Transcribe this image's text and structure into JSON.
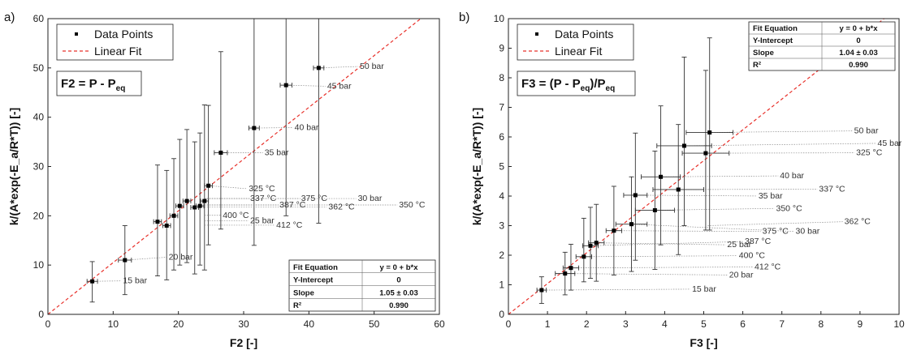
{
  "chart_data": [
    {
      "panel_label": "a)",
      "type": "scatter",
      "xlabel": "F2 [-]",
      "ylabel": "k/(A*exp(-E_a/R*T)) [-]",
      "xlim": [
        0,
        60
      ],
      "ylim": [
        0,
        60
      ],
      "xticks": [
        "0",
        "10",
        "20",
        "30",
        "40",
        "50",
        "60"
      ],
      "yticks": [
        "0",
        "10",
        "20",
        "30",
        "40",
        "50",
        "60"
      ],
      "equation_box": {
        "main": "F2 = P - P",
        "sub": "eq"
      },
      "legend": {
        "points": "Data Points",
        "fit": "Linear Fit"
      },
      "fit_table": {
        "rows": [
          [
            "Fit Equation",
            "y = 0 + b*x"
          ],
          [
            "Y-Intercept",
            "0"
          ],
          [
            "Slope",
            "1.05 ± 0.03"
          ],
          [
            "R²",
            "0.990"
          ]
        ]
      },
      "fit_line": {
        "intercept": 0,
        "slope": 1.05
      },
      "points": [
        {
          "x": 6.8,
          "y": 6.7,
          "xerr": 0.8,
          "yerr_lo": 4.2,
          "yerr_hi": 4.0,
          "label": "15 bar",
          "lx": 11.5,
          "ly": 6.3
        },
        {
          "x": 11.8,
          "y": 11.0,
          "xerr": 1.0,
          "yerr_lo": 7.0,
          "yerr_hi": 7.0,
          "label": "20 bar",
          "lx": 18.5,
          "ly": 11.1
        },
        {
          "x": 16.8,
          "y": 18.8,
          "xerr": 0.6,
          "yerr_lo": 11.0,
          "yerr_hi": 11.5,
          "label": "",
          "lx": 0,
          "ly": 0
        },
        {
          "x": 18.2,
          "y": 18.0,
          "xerr": 0.6,
          "yerr_lo": 11.0,
          "yerr_hi": 11.2,
          "label": "",
          "lx": 0,
          "ly": 0
        },
        {
          "x": 19.3,
          "y": 20.0,
          "xerr": 0.6,
          "yerr_lo": 11.0,
          "yerr_hi": 11.6,
          "label": "",
          "lx": 0,
          "ly": 0
        },
        {
          "x": 20.2,
          "y": 22.0,
          "xerr": 0.6,
          "yerr_lo": 12.0,
          "yerr_hi": 13.5,
          "label": "",
          "lx": 0,
          "ly": 0
        },
        {
          "x": 21.3,
          "y": 23.0,
          "xerr": 0.6,
          "yerr_lo": 12.5,
          "yerr_hi": 14.5,
          "label": "",
          "lx": 0,
          "ly": 0
        },
        {
          "x": 22.5,
          "y": 21.7,
          "xerr": 0.6,
          "yerr_lo": 13.5,
          "yerr_hi": 13.3,
          "label": "",
          "lx": 0,
          "ly": 0
        },
        {
          "x": 23.3,
          "y": 22.0,
          "xerr": 0.6,
          "yerr_lo": 12.0,
          "yerr_hi": 14.8,
          "label": "",
          "lx": 0,
          "ly": 0
        },
        {
          "x": 24.0,
          "y": 23.0,
          "xerr": 0.6,
          "yerr_lo": 14.0,
          "yerr_hi": 19.5,
          "label": "",
          "lx": 0,
          "ly": 0
        },
        {
          "x": 24.6,
          "y": 26.1,
          "xerr": 0.6,
          "yerr_lo": 12.0,
          "yerr_hi": 16.3,
          "label": "325 °C",
          "lx": 30.8,
          "ly": 25.0
        },
        {
          "x": 26.5,
          "y": 32.8,
          "xerr": 1.0,
          "yerr_lo": 15.5,
          "yerr_hi": 20.5,
          "label": "35 bar",
          "lx": 33.2,
          "ly": 32.3
        },
        {
          "x": 31.6,
          "y": 37.8,
          "xerr": 0.8,
          "yerr_lo": 23.8,
          "yerr_hi": 22.2,
          "label": "40 bar",
          "lx": 37.8,
          "ly": 37.4
        },
        {
          "x": 36.5,
          "y": 46.5,
          "xerr": 0.9,
          "yerr_lo": 26.5,
          "yerr_hi": 13.5,
          "label": "45 bar",
          "lx": 42.8,
          "ly": 45.8
        },
        {
          "x": 41.5,
          "y": 50.0,
          "xerr": 0.8,
          "yerr_lo": 31.5,
          "yerr_hi": 10.0,
          "label": "50 bar",
          "lx": 47.8,
          "ly": 49.8
        }
      ],
      "annotations": [
        {
          "text": "337 °C",
          "x": 31.0,
          "y": 23.0
        },
        {
          "text": "375 °C",
          "x": 38.8,
          "y": 23.0
        },
        {
          "text": "30 bar",
          "x": 47.5,
          "y": 23.0
        },
        {
          "text": "387 °C",
          "x": 35.5,
          "y": 21.7
        },
        {
          "text": "362 °C",
          "x": 43.0,
          "y": 21.3
        },
        {
          "text": "350 °C",
          "x": 53.8,
          "y": 21.7
        },
        {
          "text": "400 °C",
          "x": 26.8,
          "y": 19.6
        },
        {
          "text": "25 bar",
          "x": 31.0,
          "y": 18.5
        },
        {
          "text": "412 °C",
          "x": 35.0,
          "y": 17.6
        }
      ]
    },
    {
      "panel_label": "b)",
      "type": "scatter",
      "xlabel": "F3 [-]",
      "ylabel": "k/(A*exp(-E_a/R*T)) [-]",
      "xlim": [
        0,
        10
      ],
      "ylim": [
        0,
        10
      ],
      "xticks": [
        "0",
        "1",
        "2",
        "3",
        "4",
        "5",
        "6",
        "7",
        "8",
        "9",
        "10"
      ],
      "yticks": [
        "0",
        "1",
        "2",
        "3",
        "4",
        "5",
        "6",
        "7",
        "8",
        "9",
        "10"
      ],
      "equation_box": {
        "main": "F3 = (P - P",
        "sub": "eq",
        "tail": ")/P",
        "sub2": "eq"
      },
      "legend": {
        "points": "Data Points",
        "fit": "Linear Fit"
      },
      "fit_table": {
        "rows": [
          [
            "Fit Equation",
            "y = 0 + b*x"
          ],
          [
            "Y-Intercept",
            "0"
          ],
          [
            "Slope",
            "1.04 ± 0.03"
          ],
          [
            "R²",
            "0.990"
          ]
        ]
      },
      "fit_line": {
        "intercept": 0,
        "slope": 1.04
      },
      "points": [
        {
          "x": 0.85,
          "y": 0.82,
          "xerr": 0.12,
          "yerr_lo": 0.45,
          "yerr_hi": 0.45,
          "label": "15 bar",
          "lx": 4.7,
          "ly": 0.77
        },
        {
          "x": 1.45,
          "y": 1.38,
          "xerr": 0.25,
          "yerr_lo": 0.72,
          "yerr_hi": 0.72,
          "label": "20 bar",
          "lx": 5.65,
          "ly": 1.25
        },
        {
          "x": 1.6,
          "y": 1.57,
          "xerr": 0.2,
          "yerr_lo": 0.75,
          "yerr_hi": 0.8,
          "label": "412 °C",
          "lx": 6.3,
          "ly": 1.52
        },
        {
          "x": 1.93,
          "y": 1.95,
          "xerr": 0.2,
          "yerr_lo": 0.85,
          "yerr_hi": 1.3,
          "label": "400 °C",
          "lx": 5.9,
          "ly": 1.9
        },
        {
          "x": 2.1,
          "y": 2.32,
          "xerr": 0.2,
          "yerr_lo": 1.1,
          "yerr_hi": 1.3,
          "label": "387 °C",
          "lx": 6.05,
          "ly": 2.38
        },
        {
          "x": 2.25,
          "y": 2.42,
          "xerr": 0.2,
          "yerr_lo": 1.3,
          "yerr_hi": 1.3,
          "label": "25 bar",
          "lx": 5.6,
          "ly": 2.27
        },
        {
          "x": 2.7,
          "y": 2.83,
          "xerr": 0.2,
          "yerr_lo": 1.5,
          "yerr_hi": 1.5,
          "label": "375 °C",
          "lx": 6.5,
          "ly": 2.72
        },
        {
          "x": 3.15,
          "y": 3.05,
          "xerr": 0.4,
          "yerr_lo": 1.6,
          "yerr_hi": 1.6,
          "label": "30 bar",
          "lx": 7.35,
          "ly": 2.72
        },
        {
          "x": 3.25,
          "y": 4.03,
          "xerr": 0.3,
          "yerr_lo": 2.2,
          "yerr_hi": 2.1,
          "label": "35 bar",
          "lx": 6.4,
          "ly": 3.92
        },
        {
          "x": 3.75,
          "y": 3.52,
          "xerr": 0.5,
          "yerr_lo": 2.0,
          "yerr_hi": 2.0,
          "label": "350 °C",
          "lx": 6.85,
          "ly": 3.5
        },
        {
          "x": 3.9,
          "y": 4.65,
          "xerr": 0.5,
          "yerr_lo": 2.3,
          "yerr_hi": 2.4,
          "label": "40 bar",
          "lx": 6.95,
          "ly": 4.6
        },
        {
          "x": 4.35,
          "y": 4.22,
          "xerr": 0.65,
          "yerr_lo": 2.2,
          "yerr_hi": 2.2,
          "label": "337 °C",
          "lx": 7.95,
          "ly": 4.15
        },
        {
          "x": 4.5,
          "y": 5.7,
          "xerr": 0.7,
          "yerr_lo": 2.7,
          "yerr_hi": 3.0,
          "label": "45 bar",
          "lx": 9.45,
          "ly": 5.7
        },
        {
          "x": 5.05,
          "y": 5.45,
          "xerr": 0.6,
          "yerr_lo": 2.6,
          "yerr_hi": 2.8,
          "label": "325 °C",
          "lx": 8.9,
          "ly": 5.38
        },
        {
          "x": 5.15,
          "y": 6.15,
          "xerr": 0.6,
          "yerr_lo": 3.3,
          "yerr_hi": 3.2,
          "label": "50 bar",
          "lx": 8.85,
          "ly": 6.12
        },
        {
          "x": 5.1,
          "y": 3.0,
          "xerr": 0.0,
          "yerr_lo": 0.0,
          "yerr_hi": 0.0,
          "label": "362 °C",
          "lx": 8.6,
          "ly": 3.05
        }
      ],
      "annotations": []
    }
  ]
}
